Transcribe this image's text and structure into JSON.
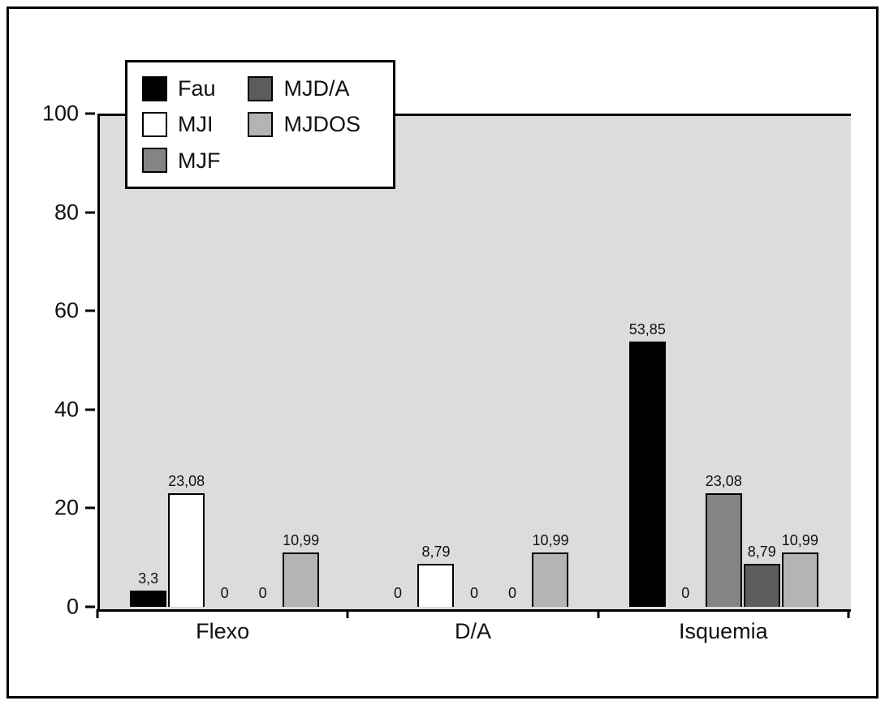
{
  "chart_data": {
    "type": "bar",
    "title": "",
    "xlabel": "",
    "ylabel": "",
    "ylim": [
      0,
      100
    ],
    "yticks": [
      0,
      20,
      40,
      60,
      80,
      100
    ],
    "grid": false,
    "legend_position": "top-left",
    "plot_background": "#dcdcdc",
    "axis_color": "#000000",
    "categories": [
      "Flexo",
      "D/A",
      "Isquemia"
    ],
    "series": [
      {
        "name": "Fau",
        "color": "#000000",
        "values": [
          3.3,
          0,
          53.85
        ],
        "labels": [
          "3,3",
          "0",
          "53,85"
        ]
      },
      {
        "name": "MJI",
        "color": "#ffffff",
        "values": [
          23.08,
          8.79,
          0
        ],
        "labels": [
          "23,08",
          "8,79",
          "0"
        ]
      },
      {
        "name": "MJF",
        "color": "#848484",
        "values": [
          0,
          0,
          23.08
        ],
        "labels": [
          "0",
          "0",
          "23,08"
        ]
      },
      {
        "name": "MJD/A",
        "color": "#5c5c5c",
        "values": [
          0,
          0,
          8.79
        ],
        "labels": [
          "0",
          "0",
          "8,79"
        ]
      },
      {
        "name": "MJDOS",
        "color": "#b4b4b4",
        "values": [
          10.99,
          10.99,
          10.99
        ],
        "labels": [
          "10,99",
          "10,99",
          "10,99"
        ]
      }
    ]
  }
}
